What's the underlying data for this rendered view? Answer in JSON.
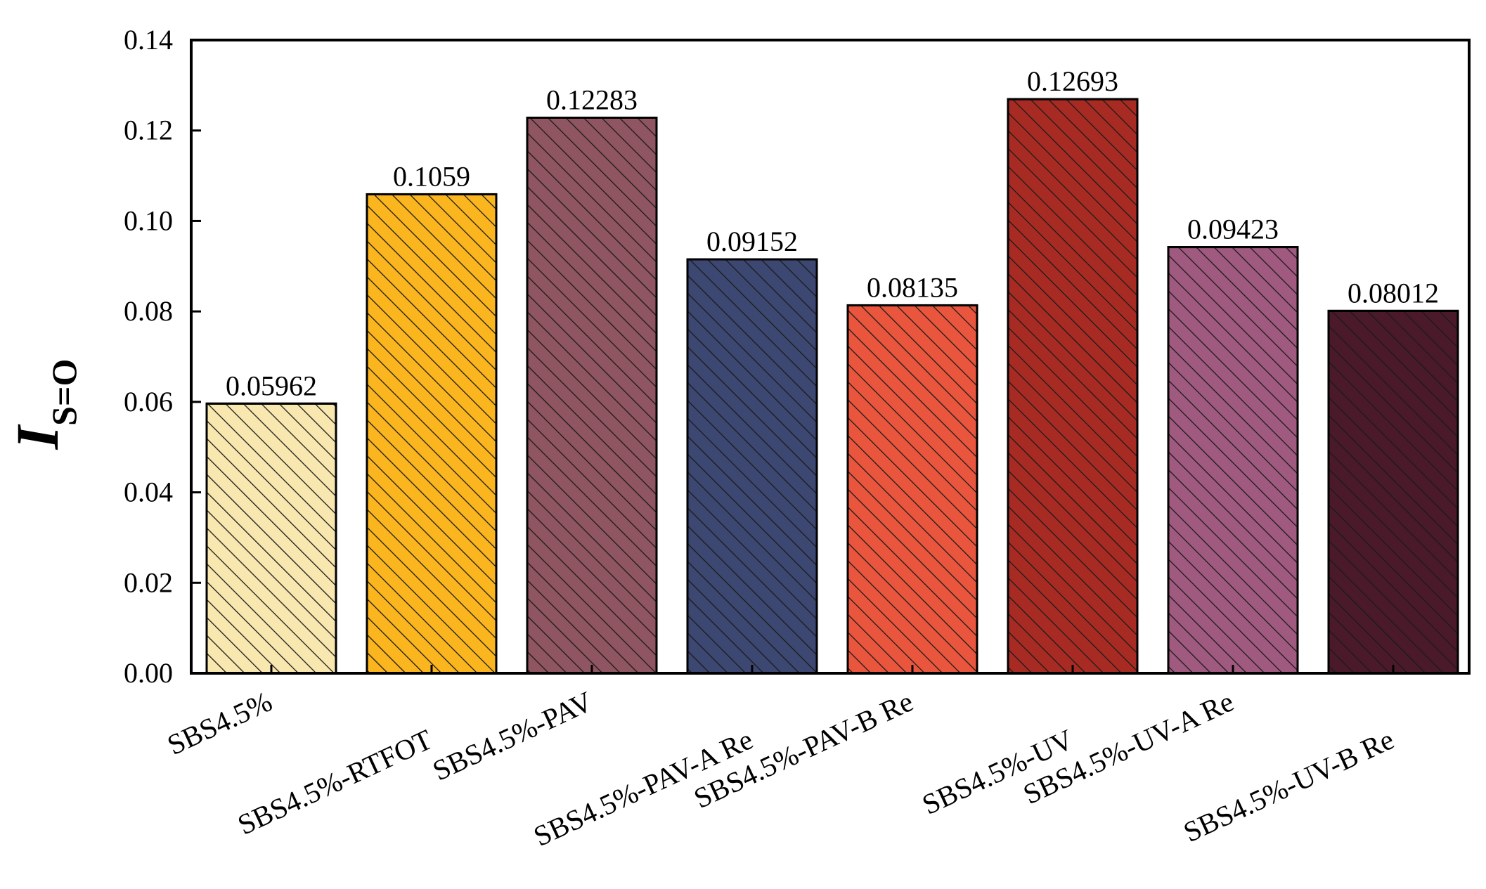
{
  "chart_data": {
    "type": "bar",
    "ylabel": "I",
    "ylabel_subscript": "S=O",
    "ylim": [
      0,
      0.14
    ],
    "yticks": [
      "0.00",
      "0.02",
      "0.04",
      "0.06",
      "0.08",
      "0.10",
      "0.12",
      "0.14"
    ],
    "grid": false,
    "legend": "none",
    "categories": [
      "SBS4.5%",
      "SBS4.5%-RTFOT",
      "SBS4.5%-PAV",
      "SBS4.5%-PAV-A Re",
      "SBS4.5%-PAV-B Re",
      "SBS4.5%-UV",
      "SBS4.5%-UV-A Re",
      "SBS4.5%-UV-B Re"
    ],
    "values": [
      0.05962,
      0.1059,
      0.12283,
      0.09152,
      0.08135,
      0.12693,
      0.09423,
      0.08012
    ],
    "data_labels": [
      "0.05962",
      "0.1059",
      "0.12283",
      "0.09152",
      "0.08135",
      "0.12693",
      "0.09423",
      "0.08012"
    ],
    "colors": [
      "#F9E7B0",
      "#FBB51E",
      "#8F5560",
      "#3C4872",
      "#E9563D",
      "#A82B23",
      "#A05A80",
      "#4A1A2A"
    ],
    "hatch": "diagonal"
  }
}
